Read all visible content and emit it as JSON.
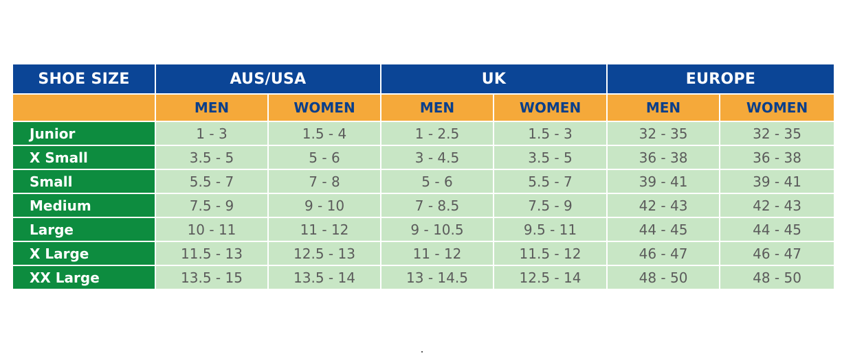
{
  "header": {
    "corner": "SHOE SIZE",
    "regions": [
      "AUS/USA",
      "UK",
      "EUROPE"
    ]
  },
  "genders": [
    "MEN",
    "WOMEN",
    "MEN",
    "WOMEN",
    "MEN",
    "WOMEN"
  ],
  "rows": [
    {
      "label": "Junior",
      "values": [
        "1 - 3",
        "1.5 - 4",
        "1 - 2.5",
        "1.5 - 3",
        "32 - 35",
        "32 - 35"
      ]
    },
    {
      "label": "X Small",
      "values": [
        "3.5 - 5",
        "5 - 6",
        "3 - 4.5",
        "3.5 - 5",
        "36 - 38",
        "36 - 38"
      ]
    },
    {
      "label": "Small",
      "values": [
        "5.5 - 7",
        "7 - 8",
        "5 - 6",
        "5.5 - 7",
        "39 - 41",
        "39 - 41"
      ]
    },
    {
      "label": "Medium",
      "values": [
        "7.5 - 9",
        "9 - 10",
        "7 - 8.5",
        "7.5 - 9",
        "42 - 43",
        "42 - 43"
      ]
    },
    {
      "label": "Large",
      "values": [
        "10 - 11",
        "11 - 12",
        "9 - 10.5",
        "9.5 - 11",
        "44 - 45",
        "44 - 45"
      ]
    },
    {
      "label": "X Large",
      "values": [
        "11.5 - 13",
        "12.5 - 13",
        "11 - 12",
        "11.5 - 12",
        "46 - 47",
        "46 - 47"
      ]
    },
    {
      "label": "XX Large",
      "values": [
        "13.5 - 15",
        "13.5 - 14",
        "13 - 14.5",
        "12.5 - 14",
        "48 - 50",
        "48 - 50"
      ]
    }
  ],
  "colors": {
    "header_blue": "#0b4596",
    "gender_orange": "#f5a93a",
    "label_green": "#0d8c3f",
    "cell_green": "#c8e6c5"
  }
}
